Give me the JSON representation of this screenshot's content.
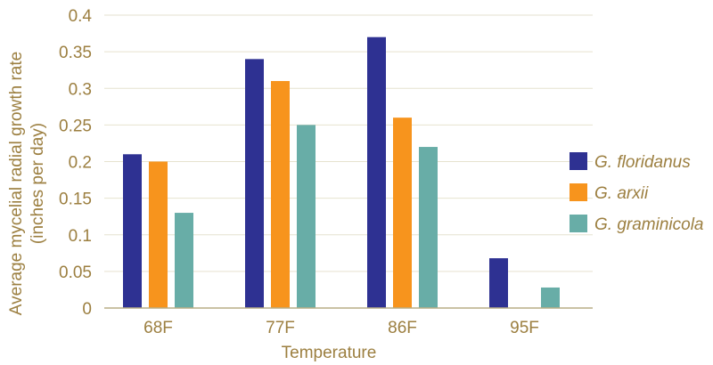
{
  "chart_data": {
    "type": "bar",
    "title": "",
    "xlabel": "Temperature",
    "ylabel": "Average mycelial radial growth rate",
    "ylabel_sub": "(inches per day)",
    "categories": [
      "68F",
      "77F",
      "86F",
      "95F"
    ],
    "ylim": [
      0,
      0.4
    ],
    "yticks": [
      0,
      0.05,
      0.1,
      0.15,
      0.2,
      0.25,
      0.3,
      0.35,
      0.4
    ],
    "ytick_labels": [
      "0",
      "0.05",
      "0.1",
      "0.15",
      "0.2",
      "0.25",
      "0.3",
      "0.35",
      "0.4"
    ],
    "grid": true,
    "legend_position": "right",
    "series": [
      {
        "name": "G. floridanus",
        "color": "#2e3192",
        "values": [
          0.21,
          0.34,
          0.37,
          0.068
        ]
      },
      {
        "name": "G. arxii",
        "color": "#f7941d",
        "values": [
          0.2,
          0.31,
          0.26,
          null
        ]
      },
      {
        "name": "G. graminicola",
        "color": "#68ada7",
        "values": [
          0.13,
          0.25,
          0.22,
          0.028
        ]
      }
    ]
  }
}
